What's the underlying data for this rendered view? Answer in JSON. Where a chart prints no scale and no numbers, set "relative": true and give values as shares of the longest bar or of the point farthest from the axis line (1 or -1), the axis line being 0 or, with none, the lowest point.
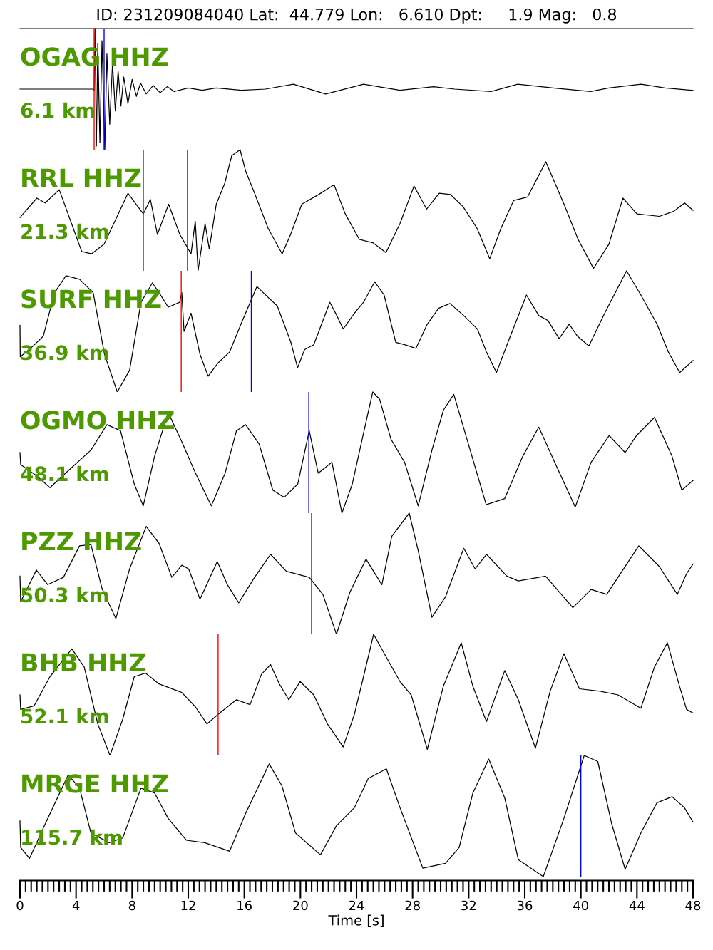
{
  "chart_data": [
    {
      "type": "line",
      "title": "ID: 231209084040 Lat:  44.779 Lon:   6.610 Dpt:     1.9 Mag:   0.8",
      "relative": true,
      "xlim": [
        0,
        48
      ],
      "tick_labels": false,
      "annotations": [
        "OGAG HHZ",
        "6.1 km"
      ],
      "ref_lines": [
        {
          "axis": "x",
          "value": 5.29,
          "color": "#ff0000"
        },
        {
          "axis": "x",
          "value": 6.0,
          "color": "#0000ff"
        }
      ],
      "series": [
        {
          "color": "#000000",
          "x": [
            0,
            5.2,
            5.29,
            5.35,
            5.45,
            5.55,
            5.7,
            5.85,
            6.05,
            6.2,
            6.4,
            6.6,
            6.8,
            7.0,
            7.2,
            7.4,
            7.7,
            8.0,
            8.3,
            8.6,
            9.0,
            9.5,
            10,
            10.5,
            11,
            12,
            13,
            14,
            15.8,
            17.5,
            19.5,
            21.8,
            24.5,
            27.1,
            29.5,
            31,
            33.6,
            35.5,
            38,
            40.7,
            42,
            44.3,
            46,
            48
          ],
          "values": [
            0.5,
            0.5,
            0.49,
            1.0,
            0.03,
            0.88,
            0.06,
            0.9,
            0.0,
            0.79,
            0.21,
            0.71,
            0.32,
            0.65,
            0.36,
            0.6,
            0.38,
            0.58,
            0.44,
            0.55,
            0.46,
            0.53,
            0.47,
            0.52,
            0.48,
            0.51,
            0.49,
            0.51,
            0.49,
            0.5,
            0.54,
            0.46,
            0.54,
            0.49,
            0.52,
            0.5,
            0.48,
            0.54,
            0.51,
            0.48,
            0.51,
            0.54,
            0.51,
            0.49
          ]
        }
      ]
    },
    {
      "type": "line",
      "relative": true,
      "xlim": [
        0,
        48
      ],
      "tick_labels": false,
      "annotations": [
        "RRL HHZ",
        "21.3 km"
      ],
      "ref_lines": [
        {
          "axis": "x",
          "value": 8.8,
          "color": "#ff0000"
        },
        {
          "axis": "x",
          "value": 11.95,
          "color": "#0000ff"
        }
      ],
      "series": [
        {
          "color": "#000000",
          "x": [
            0,
            1.2,
            1.8,
            2.8,
            4.4,
            5.1,
            6.0,
            7.7,
            8.8,
            9.3,
            9.8,
            10.6,
            11.4,
            12.2,
            12.5,
            12.7,
            13.2,
            13.5,
            14.0,
            14.6,
            15.1,
            15.7,
            16.1,
            16.7,
            17.7,
            18.7,
            19.3,
            20.1,
            21.3,
            22.4,
            23.2,
            24.2,
            25.2,
            26.1,
            27.1,
            28.1,
            29.0,
            29.9,
            30.7,
            31.6,
            32.6,
            33.5,
            34.3,
            35.2,
            36.2,
            37.5,
            38.8,
            39.8,
            40.9,
            42.0,
            43.0,
            44.0,
            45.6,
            46.6,
            47.4,
            48
          ],
          "values": [
            0.44,
            0.6,
            0.56,
            0.67,
            0.16,
            0.14,
            0.22,
            0.64,
            0.47,
            0.59,
            0.3,
            0.55,
            0.3,
            0.14,
            0.41,
            0.0,
            0.39,
            0.18,
            0.55,
            0.72,
            0.95,
            1.0,
            0.82,
            0.65,
            0.35,
            0.14,
            0.3,
            0.55,
            0.63,
            0.71,
            0.47,
            0.26,
            0.23,
            0.15,
            0.39,
            0.7,
            0.51,
            0.64,
            0.63,
            0.53,
            0.35,
            0.1,
            0.35,
            0.58,
            0.61,
            0.9,
            0.55,
            0.26,
            0.02,
            0.22,
            0.6,
            0.47,
            0.45,
            0.49,
            0.56,
            0.5
          ]
        }
      ]
    },
    {
      "type": "line",
      "relative": true,
      "xlim": [
        0,
        48
      ],
      "tick_labels": false,
      "annotations": [
        "SURF HHZ",
        "36.9 km"
      ],
      "ref_lines": [
        {
          "axis": "x",
          "value": 11.5,
          "color": "#ff0000"
        },
        {
          "axis": "x",
          "value": 16.5,
          "color": "#0000ff"
        }
      ],
      "series": [
        {
          "color": "#000000",
          "x": [
            0,
            0.02,
            0.85,
            1.66,
            2.47,
            3.28,
            4.25,
            5.22,
            6.03,
            6.94,
            7.82,
            8.63,
            9.44,
            9.92,
            10.57,
            11.39,
            11.54,
            11.7,
            12.2,
            12.84,
            13.42,
            14.13,
            14.95,
            15.76,
            16.9,
            17.7,
            18.35,
            19.32,
            19.8,
            20.3,
            20.95,
            22.1,
            22.6,
            23.05,
            23.85,
            24.5,
            25.3,
            25.97,
            26.8,
            27.43,
            28.24,
            29.05,
            29.85,
            30.67,
            31.65,
            32.62,
            33.27,
            33.98,
            34.9,
            36.12,
            37.0,
            37.65,
            38.45,
            39.17,
            39.76,
            40.57,
            41.7,
            43.26,
            44.28,
            45.43,
            46.24,
            47.05,
            48
          ],
          "values": [
            0.55,
            0.29,
            0.37,
            0.46,
            0.82,
            0.96,
            0.93,
            0.82,
            0.31,
            0.0,
            0.18,
            0.74,
            0.9,
            0.82,
            0.7,
            0.74,
            0.82,
            0.5,
            0.65,
            0.31,
            0.13,
            0.24,
            0.33,
            0.56,
            0.87,
            0.78,
            0.71,
            0.41,
            0.2,
            0.35,
            0.39,
            0.74,
            0.63,
            0.52,
            0.65,
            0.74,
            0.91,
            0.8,
            0.41,
            0.39,
            0.36,
            0.56,
            0.69,
            0.73,
            0.63,
            0.52,
            0.33,
            0.16,
            0.44,
            0.8,
            0.63,
            0.59,
            0.44,
            0.56,
            0.46,
            0.38,
            0.65,
            1.0,
            0.8,
            0.56,
            0.33,
            0.16,
            0.26
          ]
        }
      ]
    },
    {
      "type": "line",
      "relative": true,
      "xlim": [
        0,
        48
      ],
      "tick_labels": false,
      "annotations": [
        "OGMO HHZ",
        "48.1 km"
      ],
      "ref_lines": [
        {
          "axis": "x",
          "value": 20.6,
          "color": "#0000ff"
        }
      ],
      "series": [
        {
          "color": "#000000",
          "x": [
            0,
            0.05,
            1.17,
            2.14,
            3.44,
            5.06,
            6.2,
            7.17,
            8.15,
            8.79,
            9.6,
            10.57,
            11.54,
            12.52,
            13.65,
            14.63,
            15.44,
            16.09,
            17.06,
            18.03,
            18.84,
            19.81,
            20.63,
            21.27,
            22.25,
            22.96,
            23.7,
            24.5,
            25.16,
            25.65,
            26.46,
            27.43,
            28.4,
            29.38,
            30.2,
            30.94,
            31.98,
            33.25,
            34.57,
            35.86,
            37.0,
            38.13,
            39.6,
            40.73,
            42.02,
            43.16,
            43.97,
            45.25,
            46.5,
            47.2,
            48
          ],
          "values": [
            0.5,
            0.4,
            0.31,
            0.21,
            0.35,
            0.52,
            0.73,
            0.68,
            0.24,
            0.06,
            0.47,
            0.83,
            0.59,
            0.33,
            0.06,
            0.33,
            0.68,
            0.73,
            0.57,
            0.19,
            0.13,
            0.24,
            0.68,
            0.33,
            0.42,
            0.0,
            0.24,
            0.66,
            1.0,
            0.94,
            0.61,
            0.42,
            0.06,
            0.52,
            0.85,
            0.98,
            0.57,
            0.07,
            0.12,
            0.47,
            0.71,
            0.42,
            0.05,
            0.42,
            0.64,
            0.5,
            0.64,
            0.79,
            0.47,
            0.19,
            0.27
          ]
        }
      ]
    },
    {
      "type": "line",
      "relative": true,
      "xlim": [
        0,
        48
      ],
      "tick_labels": false,
      "annotations": [
        "PZZ HHZ",
        "50.3 km"
      ],
      "ref_lines": [
        {
          "axis": "x",
          "value": 20.8,
          "color": "#0000ff"
        }
      ],
      "series": [
        {
          "color": "#000000",
          "x": [
            0,
            0.05,
            1.17,
            1.98,
            3.1,
            4.25,
            5.06,
            5.87,
            6.84,
            7.82,
            9.0,
            9.92,
            10.83,
            11.54,
            12.03,
            12.84,
            14.07,
            14.79,
            15.6,
            16.73,
            17.87,
            19.0,
            20.63,
            21.6,
            22.57,
            23.54,
            24.68,
            25.81,
            26.52,
            27.76,
            28.4,
            29.38,
            30.35,
            31.65,
            32.46,
            33.27,
            34.72,
            35.54,
            37.48,
            39.43,
            40.73,
            41.85,
            44.13,
            45.59,
            46.88,
            47.54,
            48
          ],
          "values": [
            0.48,
            0.27,
            0.53,
            0.41,
            0.47,
            0.73,
            0.74,
            0.37,
            0.13,
            0.54,
            0.89,
            0.75,
            0.47,
            0.57,
            0.54,
            0.29,
            0.6,
            0.41,
            0.26,
            0.47,
            0.66,
            0.52,
            0.47,
            0.33,
            0.0,
            0.35,
            0.62,
            0.41,
            0.81,
            1.0,
            0.69,
            0.14,
            0.31,
            0.71,
            0.54,
            0.66,
            0.48,
            0.44,
            0.48,
            0.22,
            0.37,
            0.33,
            0.73,
            0.56,
            0.33,
            0.5,
            0.58
          ]
        }
      ]
    },
    {
      "type": "line",
      "relative": true,
      "xlim": [
        0,
        48
      ],
      "tick_labels": false,
      "annotations": [
        "BHB HHZ",
        "52.1 km"
      ],
      "ref_lines": [
        {
          "axis": "x",
          "value": 14.13,
          "color": "#ff0000"
        }
      ],
      "series": [
        {
          "color": "#000000",
          "x": [
            0,
            0.05,
            1.01,
            2.14,
            3.7,
            4.58,
            5.55,
            6.42,
            7.33,
            8.15,
            8.96,
            9.92,
            11.54,
            12.52,
            13.34,
            14.13,
            15.44,
            16.41,
            17.22,
            17.87,
            18.5,
            19.17,
            19.98,
            20.95,
            21.93,
            23.05,
            23.85,
            24.5,
            25.22,
            26.13,
            27.1,
            27.9,
            29.05,
            30.19,
            31.47,
            32.3,
            33.27,
            34.57,
            35.54,
            36.76,
            37.81,
            38.79,
            39.9,
            41.38,
            42.65,
            44.28,
            45.25,
            46.17,
            47.04,
            47.54,
            48
          ],
          "values": [
            0.5,
            0.38,
            0.41,
            0.65,
            0.88,
            0.73,
            0.26,
            0.0,
            0.3,
            0.65,
            0.68,
            0.59,
            0.52,
            0.4,
            0.26,
            0.34,
            0.46,
            0.42,
            0.67,
            0.75,
            0.59,
            0.46,
            0.61,
            0.5,
            0.26,
            0.07,
            0.34,
            0.65,
            1.0,
            0.81,
            0.61,
            0.5,
            0.05,
            0.57,
            0.93,
            0.57,
            0.28,
            0.7,
            0.46,
            0.06,
            0.53,
            0.84,
            0.55,
            0.53,
            0.5,
            0.39,
            0.73,
            0.93,
            0.57,
            0.38,
            0.35
          ]
        }
      ]
    },
    {
      "type": "line",
      "relative": true,
      "xlim": [
        0,
        48
      ],
      "xlabel": "Time [s]",
      "annotations": [
        "MRGE HHZ",
        "115.7 km"
      ],
      "ref_lines": [
        {
          "axis": "x",
          "value": 40.0,
          "color": "#0000ff"
        }
      ],
      "xticks": [
        0,
        {
          "value": 0.4,
          "label": null
        },
        {
          "value": 0.8,
          "label": null
        },
        {
          "value": 1.2,
          "label": null
        },
        {
          "value": 1.6,
          "label": null
        },
        {
          "value": 2,
          "label": null
        },
        {
          "value": 2.4,
          "label": null
        },
        {
          "value": 2.8,
          "label": null
        },
        {
          "value": 3.2,
          "label": null
        },
        {
          "value": 3.6,
          "label": null
        },
        4,
        {
          "value": 4.4,
          "label": null
        },
        {
          "value": 4.8,
          "label": null
        },
        {
          "value": 5.2,
          "label": null
        },
        {
          "value": 5.6,
          "label": null
        },
        {
          "value": 6,
          "label": null
        },
        {
          "value": 6.4,
          "label": null
        },
        {
          "value": 6.8,
          "label": null
        },
        {
          "value": 7.2,
          "label": null
        },
        {
          "value": 7.6,
          "label": null
        },
        8,
        {
          "value": 8.4,
          "label": null
        },
        {
          "value": 8.8,
          "label": null
        },
        {
          "value": 9.2,
          "label": null
        },
        {
          "value": 9.6,
          "label": null
        },
        {
          "value": 10,
          "label": null
        },
        {
          "value": 10.4,
          "label": null
        },
        {
          "value": 10.8,
          "label": null
        },
        {
          "value": 11.2,
          "label": null
        },
        {
          "value": 11.6,
          "label": null
        },
        12,
        {
          "value": 12.4,
          "label": null
        },
        {
          "value": 12.8,
          "label": null
        },
        {
          "value": 13.2,
          "label": null
        },
        {
          "value": 13.6,
          "label": null
        },
        {
          "value": 14,
          "label": null
        },
        {
          "value": 14.4,
          "label": null
        },
        {
          "value": 14.8,
          "label": null
        },
        {
          "value": 15.2,
          "label": null
        },
        {
          "value": 15.6,
          "label": null
        },
        16,
        {
          "value": 16.4,
          "label": null
        },
        {
          "value": 16.8,
          "label": null
        },
        {
          "value": 17.2,
          "label": null
        },
        {
          "value": 17.6,
          "label": null
        },
        {
          "value": 18,
          "label": null
        },
        {
          "value": 18.4,
          "label": null
        },
        {
          "value": 18.8,
          "label": null
        },
        {
          "value": 19.2,
          "label": null
        },
        {
          "value": 19.6,
          "label": null
        },
        20,
        {
          "value": 20.4,
          "label": null
        },
        {
          "value": 20.8,
          "label": null
        },
        {
          "value": 21.2,
          "label": null
        },
        {
          "value": 21.6,
          "label": null
        },
        {
          "value": 22,
          "label": null
        },
        {
          "value": 22.4,
          "label": null
        },
        {
          "value": 22.8,
          "label": null
        },
        {
          "value": 23.2,
          "label": null
        },
        {
          "value": 23.6,
          "label": null
        },
        24,
        {
          "value": 24.4,
          "label": null
        },
        {
          "value": 24.8,
          "label": null
        },
        {
          "value": 25.2,
          "label": null
        },
        {
          "value": 25.6,
          "label": null
        },
        {
          "value": 26,
          "label": null
        },
        {
          "value": 26.4,
          "label": null
        },
        {
          "value": 26.8,
          "label": null
        },
        {
          "value": 27.2,
          "label": null
        },
        {
          "value": 27.6,
          "label": null
        },
        28,
        {
          "value": 28.4,
          "label": null
        },
        {
          "value": 28.8,
          "label": null
        },
        {
          "value": 29.2,
          "label": null
        },
        {
          "value": 29.6,
          "label": null
        },
        {
          "value": 30,
          "label": null
        },
        {
          "value": 30.4,
          "label": null
        },
        {
          "value": 30.8,
          "label": null
        },
        {
          "value": 31.2,
          "label": null
        },
        {
          "value": 31.6,
          "label": null
        },
        32,
        {
          "value": 32.4,
          "label": null
        },
        {
          "value": 32.8,
          "label": null
        },
        {
          "value": 33.2,
          "label": null
        },
        {
          "value": 33.6,
          "label": null
        },
        {
          "value": 34,
          "label": null
        },
        {
          "value": 34.4,
          "label": null
        },
        {
          "value": 34.8,
          "label": null
        },
        {
          "value": 35.2,
          "label": null
        },
        {
          "value": 35.6,
          "label": null
        },
        36,
        {
          "value": 36.4,
          "label": null
        },
        {
          "value": 36.8,
          "label": null
        },
        {
          "value": 37.2,
          "label": null
        },
        {
          "value": 37.6,
          "label": null
        },
        {
          "value": 38,
          "label": null
        },
        {
          "value": 38.4,
          "label": null
        },
        {
          "value": 38.8,
          "label": null
        },
        {
          "value": 39.2,
          "label": null
        },
        {
          "value": 39.6,
          "label": null
        },
        40,
        {
          "value": 40.4,
          "label": null
        },
        {
          "value": 40.8,
          "label": null
        },
        {
          "value": 41.2,
          "label": null
        },
        {
          "value": 41.6,
          "label": null
        },
        {
          "value": 42,
          "label": null
        },
        {
          "value": 42.4,
          "label": null
        },
        {
          "value": 42.8,
          "label": null
        },
        {
          "value": 43.2,
          "label": null
        },
        {
          "value": 43.6,
          "label": null
        },
        44,
        {
          "value": 44.4,
          "label": null
        },
        {
          "value": 44.8,
          "label": null
        },
        {
          "value": 45.2,
          "label": null
        },
        {
          "value": 45.6,
          "label": null
        },
        {
          "value": 46,
          "label": null
        },
        {
          "value": 46.4,
          "label": null
        },
        {
          "value": 46.8,
          "label": null
        },
        {
          "value": 47.2,
          "label": null
        },
        {
          "value": 47.6,
          "label": null
        },
        48
      ],
      "series": [
        {
          "color": "#000000",
          "x": [
            0,
            0.05,
            0.68,
            1.82,
            3.44,
            4.25,
            5.06,
            6.36,
            7.33,
            8.63,
            9.6,
            10.57,
            11.87,
            13.17,
            14.95,
            16.09,
            17.77,
            18.68,
            19.65,
            21.43,
            22.57,
            23.86,
            24.84,
            26.13,
            27.1,
            28.73,
            30.35,
            31.32,
            32.3,
            33.43,
            34.57,
            35.54,
            37.32,
            38.79,
            40.24,
            41.21,
            42.19,
            43.16,
            44.28,
            45.43,
            46.5,
            47.38,
            48
          ],
          "values": [
            0.46,
            0.24,
            0.15,
            0.44,
            0.84,
            0.73,
            0.36,
            0.28,
            0.32,
            0.73,
            0.69,
            0.48,
            0.3,
            0.28,
            0.21,
            0.52,
            0.93,
            0.75,
            0.36,
            0.18,
            0.42,
            0.57,
            0.81,
            0.89,
            0.57,
            0.07,
            0.11,
            0.24,
            0.69,
            0.97,
            0.65,
            0.14,
            0.0,
            0.48,
            1.0,
            0.95,
            0.44,
            0.06,
            0.36,
            0.61,
            0.66,
            0.57,
            0.45
          ]
        }
      ]
    }
  ]
}
